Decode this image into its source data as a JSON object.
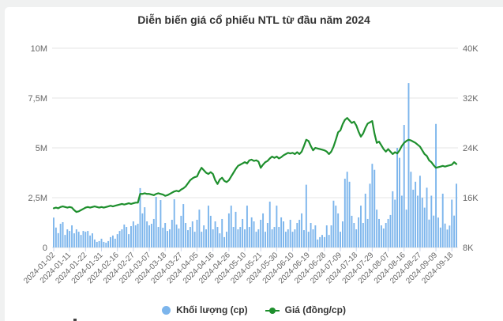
{
  "title": "Diễn biến giá cổ phiếu NTL từ đầu năm 2024",
  "legend": {
    "volume_label": "Khối lượng (cp)",
    "price_label": "Giá (đồng/cp)"
  },
  "colors": {
    "volume_bar": "#7cb5ec",
    "price_line": "#1e8f2d",
    "grid": "#e6e6e6",
    "tick": "#ccd6eb",
    "axis_label": "#666666",
    "title": "#333333"
  },
  "chart_data": {
    "type": "bar",
    "subtype": "bar+line dual axis",
    "title": "Diễn biến giá cổ phiếu NTL từ đầu năm 2024",
    "legend_position": "bottom",
    "grid": true,
    "x_tick_every": 7,
    "x_tick_labels": [
      "2024-01-02",
      "2024-01-11",
      "2024-01-22",
      "2024-01-31",
      "2024-02-16",
      "2024-02-27",
      "2024-03-07",
      "2024-03-18",
      "2024-03-27",
      "2024-04-05",
      "2024-04-16",
      "2024-04-26",
      "2024-05-10",
      "2024-05-21",
      "2024-05-30",
      "2024-06-10",
      "2024-06-19",
      "2024-06-28",
      "2024-07-09",
      "2024-07-18",
      "2024-07-29",
      "2024-08-07",
      "2024-08-16",
      "2024-08-27",
      "2024-09-09",
      "2024-09-18"
    ],
    "left_axis": {
      "title": "",
      "min": 0,
      "max": 10000000,
      "tick_labels_top_to_bottom": [
        "10M",
        "7,5M",
        "5M",
        "2,5M",
        "0"
      ]
    },
    "right_axis": {
      "title": "",
      "min": 8000,
      "max": 40000,
      "tick_labels_top_to_bottom": [
        "40K",
        "32K",
        "24K",
        "16K",
        "8K"
      ]
    },
    "series": [
      {
        "name": "Khối lượng (cp)",
        "type": "bar",
        "axis": "left",
        "values": [
          1500000,
          1000000,
          720000,
          1190000,
          1270000,
          630000,
          910000,
          830000,
          1110000,
          710000,
          910000,
          790000,
          630000,
          830000,
          790000,
          830000,
          600000,
          710000,
          400000,
          280000,
          320000,
          440000,
          280000,
          240000,
          320000,
          520000,
          600000,
          440000,
          670000,
          830000,
          910000,
          1150000,
          1030000,
          670000,
          1070000,
          1310000,
          1110000,
          1190000,
          2980000,
          1710000,
          2020000,
          1310000,
          1110000,
          1190000,
          1430000,
          2540000,
          1030000,
          2380000,
          990000,
          1230000,
          830000,
          910000,
          1390000,
          2420000,
          1150000,
          950000,
          1590000,
          2180000,
          1230000,
          870000,
          1030000,
          1310000,
          790000,
          1390000,
          1900000,
          790000,
          1110000,
          910000,
          2100000,
          1590000,
          910000,
          1310000,
          1030000,
          710000,
          1430000,
          520000,
          790000,
          1710000,
          2100000,
          1030000,
          1790000,
          910000,
          1030000,
          1430000,
          910000,
          2100000,
          1030000,
          1510000,
          1310000,
          790000,
          910000,
          1390000,
          1710000,
          790000,
          1230000,
          2300000,
          910000,
          1030000,
          2100000,
          1030000,
          1510000,
          1310000,
          790000,
          910000,
          1390000,
          790000,
          910000,
          1230000,
          1390000,
          1710000,
          870000,
          3150000,
          790000,
          1230000,
          910000,
          1110000,
          400000,
          520000,
          630000,
          520000,
          1110000,
          630000,
          1110000,
          2350000,
          2100000,
          1710000,
          790000,
          1310000,
          3450000,
          3800000,
          3300000,
          1590000,
          1230000,
          910000,
          1510000,
          2100000,
          1230000,
          2700000,
          1430000,
          3200000,
          4200000,
          3900000,
          1900000,
          1430000,
          1110000,
          950000,
          1230000,
          1430000,
          1630000,
          2820000,
          2400000,
          5000000,
          4500000,
          2600000,
          6150000,
          1900000,
          8250000,
          3800000,
          2900000,
          3300000,
          2600000,
          3600000,
          2500000,
          2000000,
          3000000,
          1400000,
          2600000,
          1600000,
          6200000,
          1500000,
          1000000,
          2700000,
          1200000,
          900000,
          1100000,
          2400000,
          1600000,
          3200000
        ]
      },
      {
        "name": "Giá (đồng/cp)",
        "type": "line",
        "axis": "right",
        "values": [
          14300,
          14400,
          14300,
          14500,
          14600,
          14500,
          14400,
          14500,
          14400,
          14000,
          13700,
          13800,
          14000,
          14200,
          14400,
          14500,
          14400,
          14500,
          14600,
          14500,
          14400,
          14500,
          14400,
          14500,
          14600,
          14700,
          14600,
          14700,
          14800,
          14900,
          15000,
          14900,
          15000,
          15100,
          15000,
          15100,
          15200,
          15200,
          16600,
          16600,
          16700,
          16600,
          16600,
          16500,
          16400,
          16600,
          16700,
          16600,
          16500,
          16300,
          16400,
          16600,
          16800,
          17000,
          17100,
          17000,
          17300,
          17500,
          17800,
          18300,
          18800,
          19100,
          19300,
          19400,
          20200,
          20800,
          20400,
          20000,
          19800,
          20100,
          19800,
          18800,
          18200,
          18900,
          19200,
          18700,
          18500,
          18800,
          19400,
          20000,
          20600,
          21100,
          21300,
          21500,
          21700,
          21500,
          22000,
          22100,
          21900,
          22000,
          21800,
          20800,
          21300,
          21700,
          21900,
          22300,
          22600,
          22400,
          22600,
          22300,
          22500,
          22800,
          23000,
          23200,
          23100,
          23200,
          23000,
          23300,
          23000,
          23400,
          24300,
          25300,
          25100,
          24300,
          23600,
          24000,
          23900,
          23800,
          23700,
          23600,
          23400,
          23000,
          23400,
          24200,
          25300,
          26500,
          26800,
          27800,
          28500,
          28800,
          28400,
          28000,
          28200,
          27600,
          26600,
          25800,
          26300,
          27200,
          27900,
          28100,
          28300,
          26300,
          24800,
          25000,
          24400,
          23800,
          23400,
          23800,
          23400,
          23000,
          23300,
          23100,
          23600,
          24300,
          24800,
          25100,
          25300,
          25200,
          25000,
          24800,
          24500,
          24200,
          23600,
          23000,
          22700,
          22000,
          21700,
          21200,
          20800,
          20900,
          21000,
          21100,
          21000,
          21100,
          21200,
          21300,
          21700,
          21400
        ]
      }
    ]
  }
}
